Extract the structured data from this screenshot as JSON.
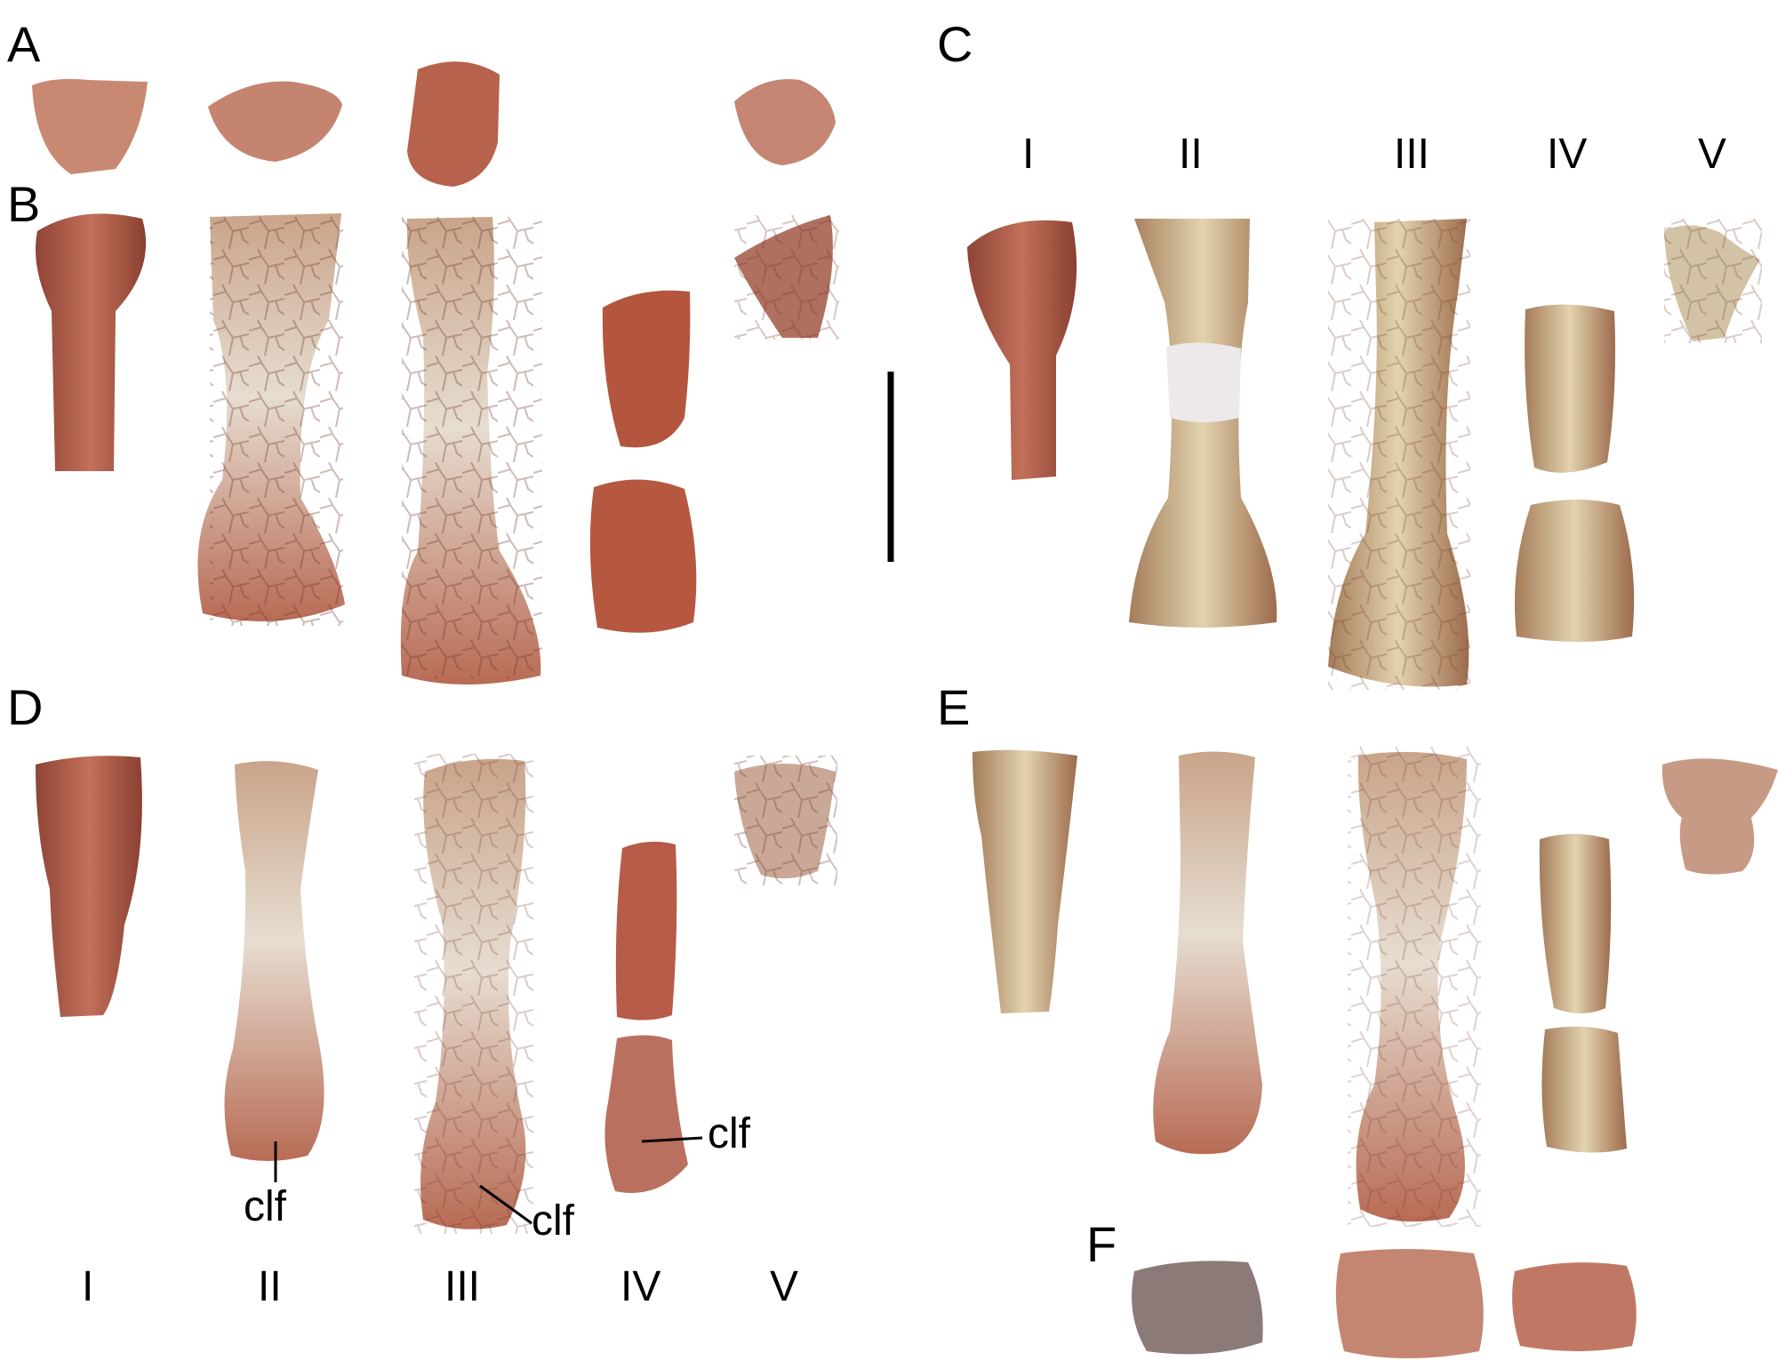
{
  "panel_labels": [
    "A",
    "B",
    "C",
    "D",
    "E",
    "F"
  ],
  "digit_labels": [
    "I",
    "II",
    "III",
    "IV",
    "V"
  ],
  "annotations": [
    "clf",
    "clf",
    "clf"
  ],
  "colors": {
    "bone_red": "#b05a45",
    "bone_cream": "#d8c7a0",
    "plaster": "#e8e4e4",
    "crack": "#6b2f24"
  }
}
